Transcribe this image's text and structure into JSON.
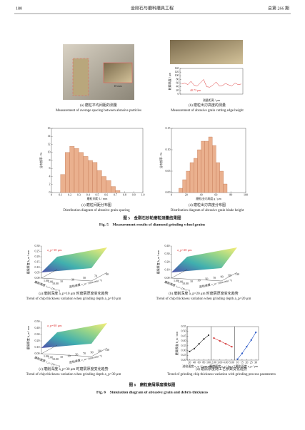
{
  "header": {
    "page": "180",
    "journal": "金刚石与磨料磨具工程",
    "issue": "总第 266 期"
  },
  "fig5": {
    "a": {
      "inset_label": "10 mm",
      "cn": "(a) 磨粒平均间距的测量",
      "en": "Measurement of average spacing between abrasive particles"
    },
    "b": {
      "chart": {
        "type": "line",
        "ylabel": "轮廓高度 / μm",
        "xlabel": "测量距离 / μm",
        "annotation": "40.73 μm",
        "ylim": [
          0,
          140
        ],
        "yticks": [
          0,
          20,
          40,
          60,
          80,
          100,
          120,
          140
        ],
        "color": "#d33",
        "values": [
          55,
          60,
          52,
          70,
          48,
          45,
          62,
          80,
          40,
          38,
          50,
          66,
          44,
          47,
          58,
          50,
          45,
          60,
          52,
          55
        ]
      },
      "cn": "(b) 磨粒出刃高度的测量",
      "en": "Measurement of abrasive grain cutting edge height"
    },
    "c": {
      "chart": {
        "type": "histogram",
        "xlabel": "磨粒间距 L / mm",
        "ylabel": "分布频率 / %",
        "xlim": [
          0,
          1.0
        ],
        "xticks": [
          0,
          0.1,
          0.2,
          0.3,
          0.4,
          0.5,
          0.6,
          0.7,
          0.8,
          0.9,
          {
            "value": 1.0,
            "label": "1.0"
          }
        ],
        "ylim": [
          0,
          16
        ],
        "yticks": [
          0,
          2,
          4,
          6,
          8,
          10,
          12,
          14,
          16
        ],
        "bins": [
          0.1,
          0.15,
          0.2,
          0.25,
          0.3,
          0.35,
          0.4,
          0.45,
          0.5,
          0.55,
          0.6,
          0.65,
          0.7,
          0.75
        ],
        "values": [
          4.5,
          10,
          11.5,
          11,
          10,
          9,
          8,
          7.5,
          5.5,
          4,
          3,
          1.5,
          0.5
        ],
        "color": "#eab08e"
      },
      "cn": "(c) 磨粒间距分布图",
      "en": "Distribution diagram of abrasive grain spacing"
    },
    "d": {
      "chart": {
        "type": "histogram",
        "xlabel": "磨粒出刃高度 g / μm",
        "ylabel": "分布频率 / %",
        "xlim": [
          0,
          100
        ],
        "xticks": [
          0,
          20,
          40,
          60,
          80,
          100
        ],
        "ylim": [
          0,
          0.15
        ],
        "yticks": [
          {
            "value": 0,
            "label": "0.00"
          },
          0.05,
          {
            "value": 0.1,
            "label": "0.10"
          },
          0.15
        ],
        "bins": [
          10,
          15,
          20,
          25,
          30,
          35,
          40,
          45,
          50,
          55,
          60,
          65,
          70,
          75
        ],
        "values": [
          0.01,
          0.03,
          0.05,
          0.07,
          0.08,
          0.1,
          0.12,
          0.12,
          0.13,
          0.11,
          0.07,
          0.05,
          0.02
        ],
        "color": "#eab08e"
      },
      "cn": "(d) 磨粒出刃高度分布图",
      "en": "Distribution diagram of abrasive grain blade height"
    },
    "caption_cn": "图 5　金刚石砂轮磨粒测量结果图",
    "caption_en": "Fig. 5　Measurement results of diamond grinding wheel grains"
  },
  "fig6": {
    "a": {
      "annotation": "a_p=10 μm",
      "zlabel": "磨屑厚度 h_m / mm",
      "xlabel": "进给速度 v_w / (mm·min⁻¹)",
      "ylabel": "磨削速度 v_s / (m·s⁻¹)",
      "zlim": [
        0,
        0.3
      ],
      "zticks": [
        {
          "value": 0,
          "label": "0.00"
        },
        0.05,
        {
          "value": 0.1,
          "label": "0.10"
        },
        0.15,
        {
          "value": 0.2,
          "label": "0.20"
        },
        0.25,
        {
          "value": 0.3,
          "label": "0.30"
        }
      ],
      "xticks": [
        10,
        30,
        50,
        70,
        90
      ],
      "yticks": [
        {
          "value": 1,
          "label": "1.00"
        },
        {
          "value": 5,
          "label": "5.00"
        },
        {
          "value": 10,
          "label": "10.00"
        }
      ],
      "cn": "(a) 磨削深度 a_p=10 μm 时磨屑厚度变化趋势",
      "en": "Trend of chip thickness variation when grinding depth a_p=10 μm"
    },
    "b": {
      "annotation": "a_p=20 μm",
      "zlabel": "磨屑厚度 h_m / mm",
      "xlabel": "进给速度 v_w / (mm·min⁻¹)",
      "ylabel": "磨削速度 v_s / (m·s⁻¹)",
      "zlim": [
        0,
        0.4
      ],
      "zticks": [
        {
          "value": 0,
          "label": "0.00"
        },
        {
          "value": 0.1,
          "label": "0.10"
        },
        {
          "value": 0.2,
          "label": "0.20"
        },
        {
          "value": 0.3,
          "label": "0.30"
        },
        {
          "value": 0.4,
          "label": "0.40"
        }
      ],
      "xticks": [
        10,
        30,
        50,
        70,
        90,
        110,
        130
      ],
      "yticks": [
        {
          "value": 1,
          "label": "1.00"
        },
        {
          "value": 5,
          "label": "5.00"
        },
        {
          "value": 10,
          "label": "10.00"
        }
      ],
      "cn": "(b) 磨削深度 a_p=20 μm 时磨屑厚度变化趋势",
      "en": "Trend of chip thickness variation when grinding depth a_p=20 μm"
    },
    "c": {
      "annotation": "a_p=30 μm",
      "zlabel": "磨屑厚度 h_m / mm",
      "xlabel": "进给速度 v_w / (mm·min⁻¹)",
      "ylabel": "磨削速度 v_s / (m·s⁻¹)",
      "zlim": [
        0,
        0.5
      ],
      "zticks": [
        {
          "value": 0,
          "label": "0.00"
        },
        {
          "value": 0.1,
          "label": "0.10"
        },
        {
          "value": 0.2,
          "label": "0.20"
        },
        {
          "value": 0.3,
          "label": "0.30"
        },
        {
          "value": 0.4,
          "label": "0.40"
        },
        {
          "value": 0.5,
          "label": "0.50"
        }
      ],
      "xticks": [
        10,
        30,
        50,
        70,
        90,
        110,
        130
      ],
      "yticks": [
        {
          "value": 1,
          "label": "1.00"
        },
        {
          "value": 5,
          "label": "5.00"
        },
        {
          "value": 10,
          "label": "10.00"
        }
      ],
      "cn": "(c) 磨削深度 a_p=30 μm 时磨屑厚度变化趋势",
      "en": "Trend of chip thickness variation when grinding depth a_p=30 μm"
    },
    "d": {
      "chart": {
        "type": "line",
        "ylabel": "磨屑厚度 h_m / mm",
        "ylim": [
          0.2,
          0.55
        ],
        "yticks": [
          {
            "value": 0.2,
            "label": "0.20"
          },
          0.25,
          {
            "value": 0.3,
            "label": "0.30"
          },
          0.35,
          {
            "value": 0.4,
            "label": "0.40"
          },
          0.45,
          {
            "value": 0.5,
            "label": "0.50"
          },
          0.55
        ],
        "panels": [
          {
            "xlabel": "进给速度 v_w / (mm·min⁻¹)",
            "xlim": [
              10,
              110
            ],
            "xticks": [
              20,
              40,
              60,
              80,
              100
            ],
            "series": [
              {
                "color": "#333333",
                "x": [
                  20,
                  40,
                  60,
                  80,
                  100
                ],
                "values": [
                  0.29,
                  0.32,
                  0.37,
                  0.42,
                  0.46
                ]
              }
            ]
          },
          {
            "xlabel": "磨削速度 v_s / (m·s⁻¹)",
            "xlim": [
              1.5,
              5.5
            ],
            "xticks": [
              {
                "value": 2,
                "label": "2.00"
              },
              {
                "value": 3,
                "label": "3.00"
              },
              {
                "value": 4,
                "label": "4.00"
              },
              {
                "value": 5,
                "label": "5.00"
              }
            ],
            "series": [
              {
                "color": "#d33333",
                "x": [
                  2,
                  3,
                  4,
                  5
                ],
                "values": [
                  0.43,
                  0.4,
                  0.37,
                  0.34
                ]
              }
            ]
          },
          {
            "xlabel": "磨削深度 a_p / μm",
            "xlim": [
              7,
              33
            ],
            "xticks": [
              10,
              15,
              20,
              25,
              30
            ],
            "series": [
              {
                "color": "#2554c7",
                "x": [
                  10,
                  15,
                  20,
                  25,
                  30
                ],
                "values": [
                  0.21,
                  0.27,
                  0.34,
                  0.41,
                  0.49
                ]
              }
            ]
          }
        ]
      },
      "cn": "(d) 磨屑厚度随工艺参数变化趋势",
      "en": "Trend of grinding chip thickness variation with grinding process parameters"
    },
    "caption_cn": "图 6　磨粒磨屑厚度模拟图",
    "caption_en": "Fig. 6　Simulation diagram of abrasive grain and debris thickness"
  }
}
